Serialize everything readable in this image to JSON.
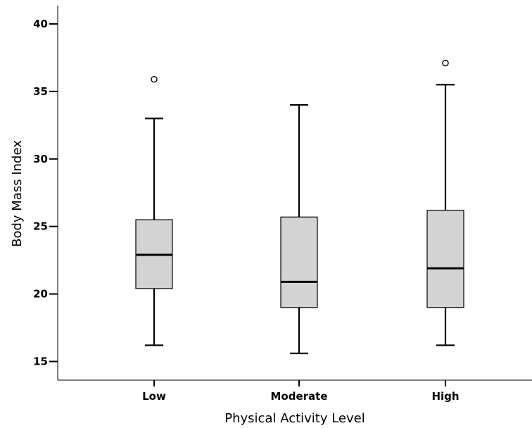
{
  "chart_data": {
    "type": "boxplot",
    "title": "",
    "xlabel": "Physical Activity Level",
    "ylabel": "Body Mass Index",
    "categories": [
      "Low",
      "Moderate",
      "High"
    ],
    "ylim": [
      14,
      41
    ],
    "yticks": [
      15,
      20,
      25,
      30,
      35,
      40
    ],
    "grid": false,
    "box_color": "#d3d3d3",
    "boxes": [
      {
        "category": "Low",
        "min": 16.2,
        "q1": 20.4,
        "median": 22.9,
        "q3": 25.5,
        "max": 33.0,
        "outliers": [
          35.9
        ]
      },
      {
        "category": "Moderate",
        "min": 15.6,
        "q1": 19.0,
        "median": 20.9,
        "q3": 25.7,
        "max": 34.0,
        "outliers": []
      },
      {
        "category": "High",
        "min": 16.2,
        "q1": 19.0,
        "median": 21.9,
        "q3": 26.2,
        "max": 35.5,
        "outliers": [
          37.1
        ]
      }
    ]
  }
}
